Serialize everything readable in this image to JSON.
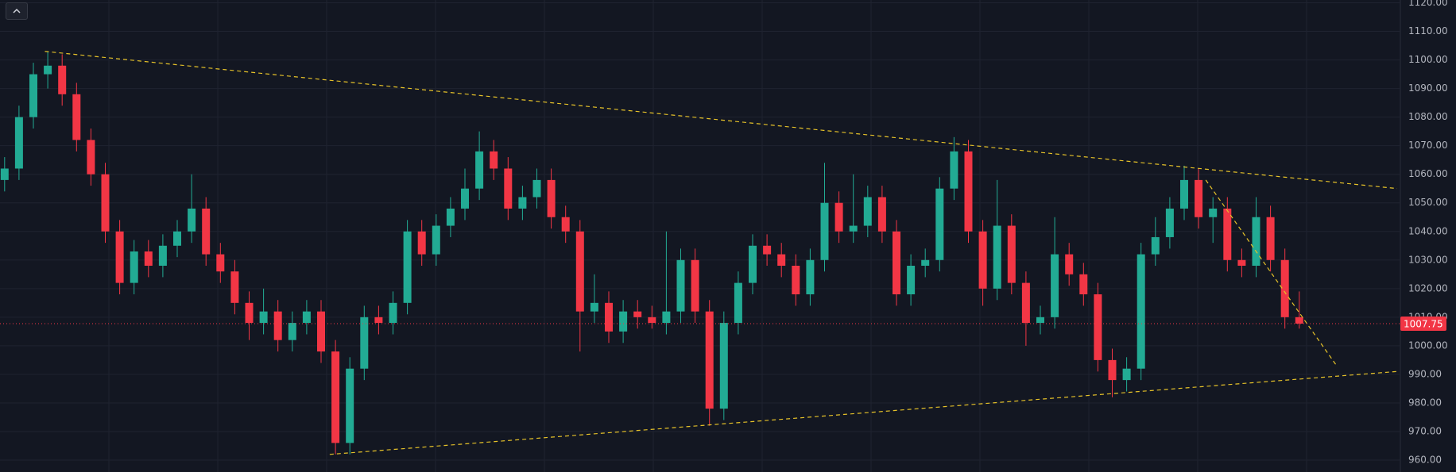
{
  "chart_data": {
    "type": "candlestick",
    "up_color": "#22ab94",
    "down_color": "#f23645",
    "grid": true,
    "open": [
      1058,
      1062,
      1080,
      1095,
      1098,
      1088,
      1072,
      1060,
      1040,
      1022,
      1033,
      1028,
      1035,
      1040,
      1048,
      1032,
      1026,
      1015,
      1008,
      1012,
      1002,
      1008,
      1012,
      998,
      966,
      992,
      1010,
      1008,
      1015,
      1040,
      1032,
      1042,
      1048,
      1055,
      1068,
      1062,
      1048,
      1052,
      1058,
      1045,
      1040,
      1012,
      1015,
      1005,
      1012,
      1010,
      1008,
      1012,
      1030,
      1012,
      978,
      1008,
      1022,
      1035,
      1032,
      1028,
      1018,
      1030,
      1050,
      1040,
      1042,
      1052,
      1040,
      1018,
      1028,
      1030,
      1055,
      1068,
      1040,
      1020,
      1042,
      1022,
      1008,
      1010,
      1032,
      1025,
      1018,
      995,
      988,
      992,
      1032,
      1038,
      1048,
      1058,
      1045,
      1048,
      1030,
      1028,
      1045,
      1030,
      1010
    ],
    "high": [
      1066,
      1084,
      1099,
      1103,
      1102,
      1092,
      1076,
      1064,
      1044,
      1037,
      1037,
      1039,
      1044,
      1060,
      1052,
      1036,
      1030,
      1019,
      1020,
      1016,
      1012,
      1016,
      1016,
      1002,
      996,
      1014,
      1014,
      1019,
      1044,
      1044,
      1046,
      1052,
      1062,
      1075,
      1072,
      1066,
      1056,
      1062,
      1062,
      1049,
      1044,
      1025,
      1019,
      1016,
      1016,
      1014,
      1040,
      1034,
      1034,
      1016,
      1012,
      1026,
      1039,
      1039,
      1036,
      1032,
      1034,
      1064,
      1054,
      1060,
      1056,
      1056,
      1044,
      1032,
      1034,
      1059,
      1073,
      1072,
      1044,
      1058,
      1046,
      1026,
      1014,
      1045,
      1036,
      1029,
      1022,
      999,
      996,
      1036,
      1045,
      1052,
      1063,
      1062,
      1052,
      1052,
      1034,
      1052,
      1049,
      1034,
      1019
    ],
    "low": [
      1054,
      1058,
      1076,
      1090,
      1084,
      1068,
      1056,
      1036,
      1018,
      1018,
      1024,
      1024,
      1031,
      1036,
      1028,
      1022,
      1011,
      1002,
      1004,
      998,
      998,
      1004,
      994,
      962,
      962,
      988,
      1004,
      1004,
      1011,
      1028,
      1028,
      1038,
      1044,
      1051,
      1058,
      1044,
      1044,
      1048,
      1041,
      1036,
      998,
      1008,
      1001,
      1001,
      1006,
      1006,
      1004,
      1008,
      1008,
      972,
      974,
      1004,
      1018,
      1028,
      1024,
      1014,
      1014,
      1026,
      1036,
      1036,
      1038,
      1036,
      1014,
      1014,
      1024,
      1026,
      1051,
      1036,
      1014,
      1016,
      1018,
      1000,
      1004,
      1006,
      1021,
      1014,
      991,
      982,
      984,
      988,
      1028,
      1034,
      1044,
      1041,
      1036,
      1026,
      1024,
      1024,
      1026,
      1006,
      1006
    ],
    "close": [
      1062,
      1080,
      1095,
      1098,
      1088,
      1072,
      1060,
      1040,
      1022,
      1033,
      1028,
      1035,
      1040,
      1048,
      1032,
      1026,
      1015,
      1008,
      1012,
      1002,
      1008,
      1012,
      998,
      966,
      992,
      1010,
      1008,
      1015,
      1040,
      1032,
      1042,
      1048,
      1055,
      1068,
      1062,
      1048,
      1052,
      1058,
      1045,
      1040,
      1012,
      1015,
      1005,
      1012,
      1010,
      1008,
      1012,
      1030,
      1012,
      978,
      1008,
      1022,
      1035,
      1032,
      1028,
      1018,
      1030,
      1050,
      1040,
      1042,
      1052,
      1040,
      1018,
      1028,
      1030,
      1055,
      1068,
      1040,
      1020,
      1042,
      1022,
      1008,
      1010,
      1032,
      1025,
      1018,
      995,
      988,
      992,
      1032,
      1038,
      1048,
      1058,
      1045,
      1048,
      1030,
      1028,
      1045,
      1030,
      1010,
      1007.75
    ],
    "ylim": [
      960,
      1120
    ],
    "yticks": [
      {
        "value": 960,
        "label": "960.00"
      },
      {
        "value": 970,
        "label": "970.00"
      },
      {
        "value": 980,
        "label": "980.00"
      },
      {
        "value": 990,
        "label": "990.00"
      },
      {
        "value": 1000,
        "label": "1000.00"
      },
      {
        "value": 1010,
        "label": "1010.00"
      },
      {
        "value": 1020,
        "label": "1020.00"
      },
      {
        "value": 1030,
        "label": "1030.00"
      },
      {
        "value": 1040,
        "label": "1040.00"
      },
      {
        "value": 1050,
        "label": "1050.00"
      },
      {
        "value": 1060,
        "label": "1060.00"
      },
      {
        "value": 1070,
        "label": "1070.00"
      },
      {
        "value": 1080,
        "label": "1080.00"
      },
      {
        "value": 1090,
        "label": "1090.00"
      },
      {
        "value": 1100,
        "label": "1100.00"
      },
      {
        "value": 1110,
        "label": "1110.00"
      },
      {
        "value": 1120,
        "label": "1120.00"
      }
    ],
    "trendline_color": "#e6c229",
    "trendlines": [
      {
        "x": [
          2.8,
          96.8
        ],
        "y": [
          1103,
          1055
        ]
      },
      {
        "x": [
          22.6,
          96.8
        ],
        "y": [
          962,
          991
        ]
      },
      {
        "x": [
          83.5,
          92.6
        ],
        "y": [
          1058,
          993
        ]
      }
    ]
  }
}
